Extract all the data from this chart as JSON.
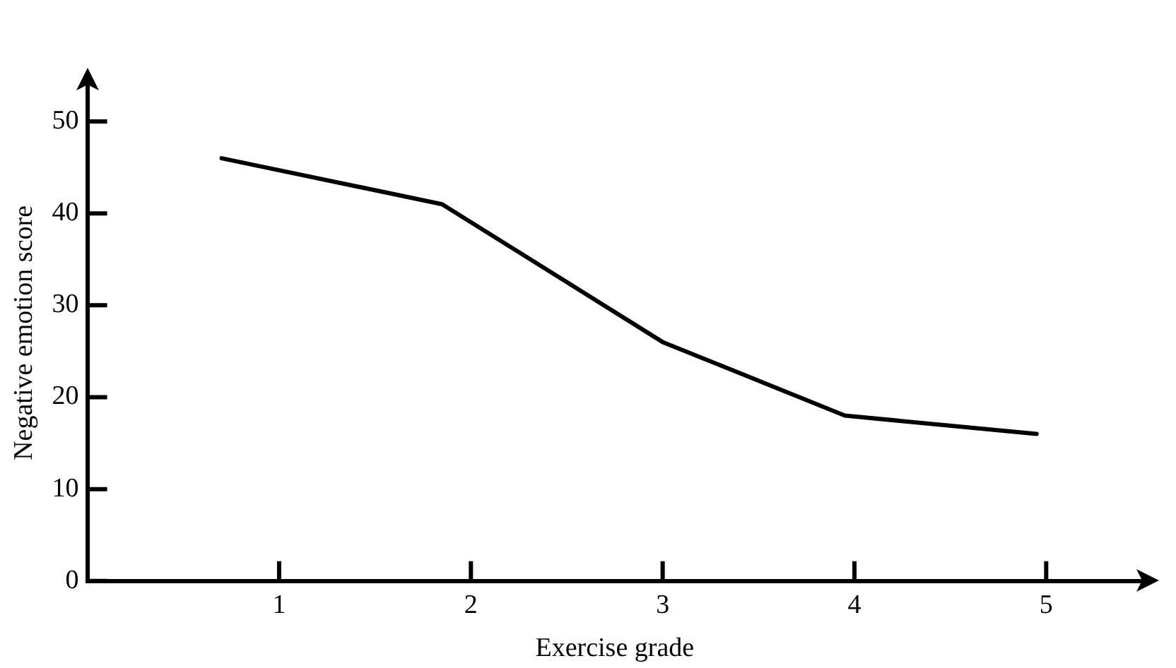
{
  "chart_data": {
    "type": "line",
    "xlabel": "Exercise grade",
    "ylabel": "Negative emotion score",
    "x": [
      0.7,
      1.85,
      3,
      3.95,
      4.95
    ],
    "series": [
      {
        "color": "#000000",
        "values": [
          46,
          41,
          26,
          18,
          16
        ]
      }
    ],
    "xlim": [
      0,
      5.5
    ],
    "xticks": [
      1,
      2,
      3,
      4,
      5
    ],
    "ylim": [
      0,
      54
    ],
    "yticks": [
      0,
      10,
      20,
      30,
      40,
      50
    ],
    "grid": false,
    "legend": false,
    "marker": "none",
    "line_style": "solid"
  }
}
